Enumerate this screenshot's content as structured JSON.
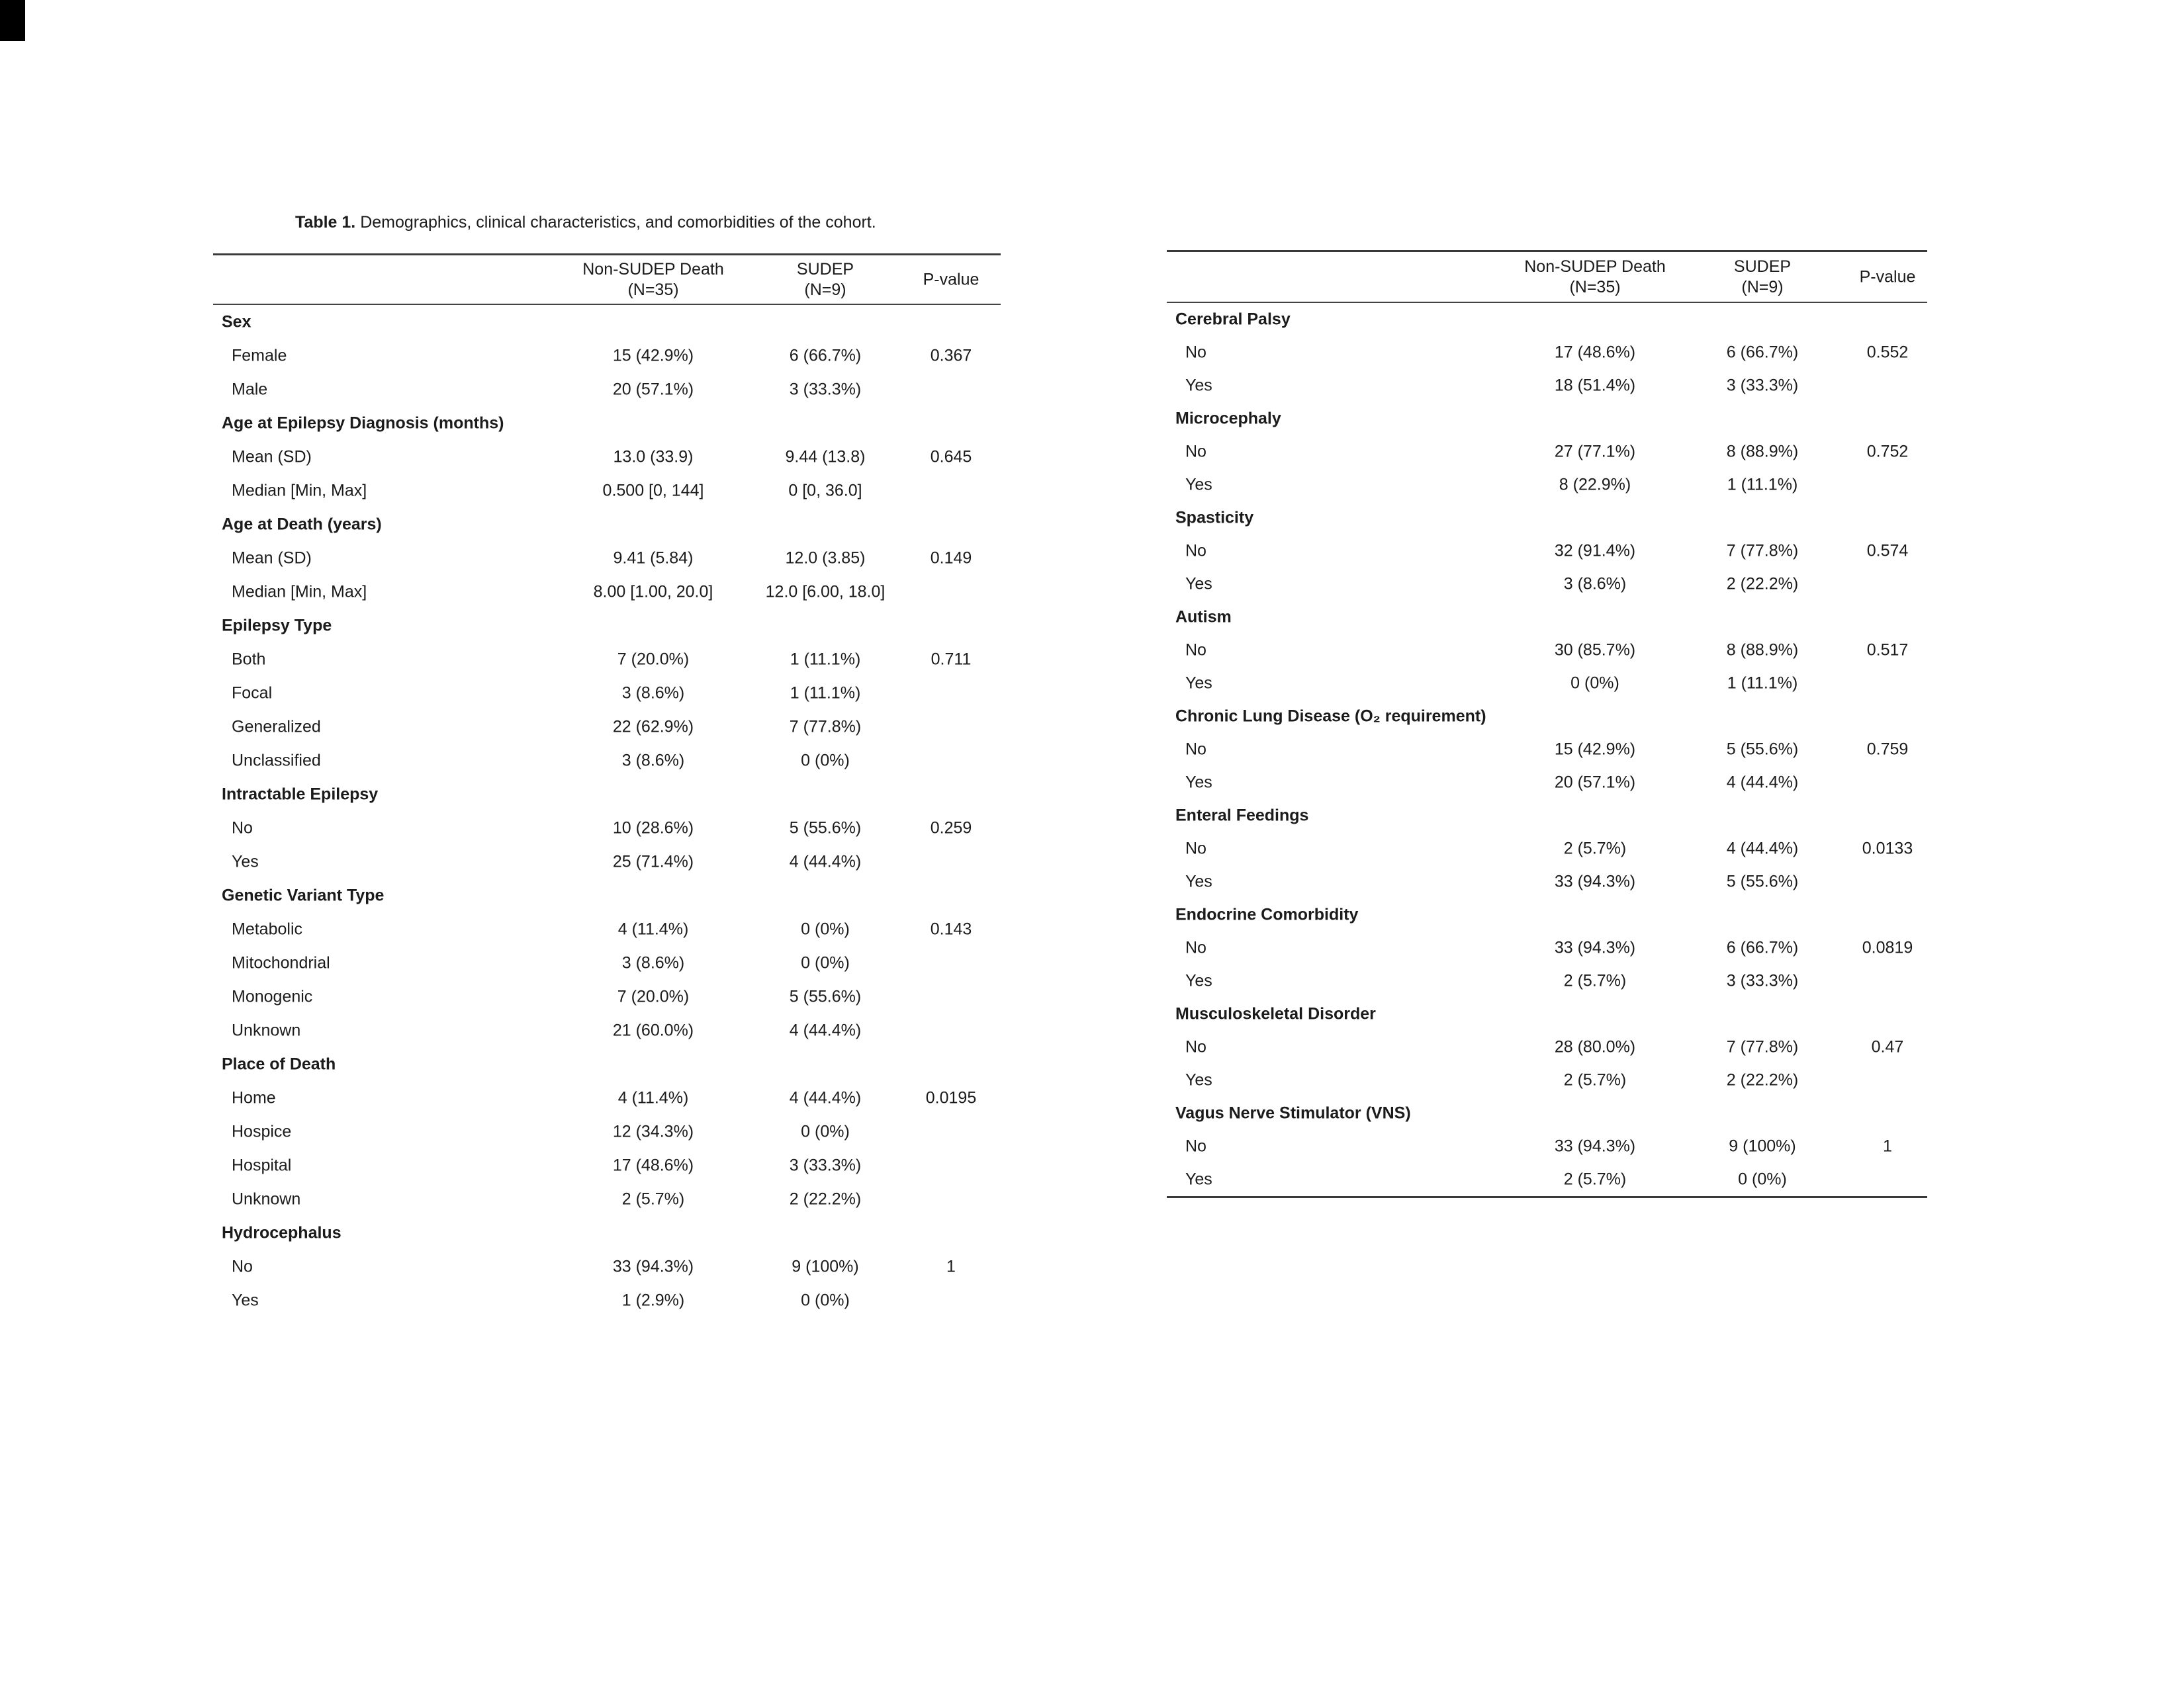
{
  "title": {
    "bold": "Table 1.",
    "rest": " Demographics, clinical characteristics, and comorbidities of the cohort."
  },
  "tables": [
    {
      "name": "demographics-clinical",
      "headers": [
        {
          "line1": "Non-SUDEP Death",
          "line2": "(N=35)"
        },
        {
          "line1": "SUDEP",
          "line2": "(N=9)"
        },
        {
          "line1": "P-value",
          "line2": ""
        }
      ],
      "sections": [
        {
          "label": "Sex",
          "rows": [
            {
              "label": "Female",
              "v1": "15 (42.9%)",
              "v2": "6 (66.7%)",
              "p": "0.367"
            },
            {
              "label": "Male",
              "v1": "20 (57.1%)",
              "v2": "3 (33.3%)",
              "p": ""
            }
          ]
        },
        {
          "label": "Age at Epilepsy Diagnosis (months)",
          "rows": [
            {
              "label": "Mean (SD)",
              "v1": "13.0 (33.9)",
              "v2": "9.44 (13.8)",
              "p": "0.645"
            },
            {
              "label": "Median [Min, Max]",
              "v1": "0.500 [0, 144]",
              "v2": "0 [0, 36.0]",
              "p": ""
            }
          ]
        },
        {
          "label": "Age at Death (years)",
          "rows": [
            {
              "label": "Mean (SD)",
              "v1": "9.41 (5.84)",
              "v2": "12.0 (3.85)",
              "p": "0.149"
            },
            {
              "label": "Median [Min, Max]",
              "v1": "8.00 [1.00, 20.0]",
              "v2": "12.0 [6.00, 18.0]",
              "p": ""
            }
          ]
        },
        {
          "label": "Epilepsy Type",
          "rows": [
            {
              "label": "Both",
              "v1": "7 (20.0%)",
              "v2": "1 (11.1%)",
              "p": "0.711"
            },
            {
              "label": "Focal",
              "v1": "3 (8.6%)",
              "v2": "1 (11.1%)",
              "p": ""
            },
            {
              "label": "Generalized",
              "v1": "22 (62.9%)",
              "v2": "7 (77.8%)",
              "p": ""
            },
            {
              "label": "Unclassified",
              "v1": "3 (8.6%)",
              "v2": "0 (0%)",
              "p": ""
            }
          ]
        },
        {
          "label": "Intractable Epilepsy",
          "rows": [
            {
              "label": "No",
              "v1": "10 (28.6%)",
              "v2": "5 (55.6%)",
              "p": "0.259"
            },
            {
              "label": "Yes",
              "v1": "25 (71.4%)",
              "v2": "4 (44.4%)",
              "p": ""
            }
          ]
        },
        {
          "label": "Genetic Variant Type",
          "rows": [
            {
              "label": "Metabolic",
              "v1": "4 (11.4%)",
              "v2": "0 (0%)",
              "p": "0.143"
            },
            {
              "label": "Mitochondrial",
              "v1": "3 (8.6%)",
              "v2": "0 (0%)",
              "p": ""
            },
            {
              "label": "Monogenic",
              "v1": "7 (20.0%)",
              "v2": "5 (55.6%)",
              "p": ""
            },
            {
              "label": "Unknown",
              "v1": "21 (60.0%)",
              "v2": "4 (44.4%)",
              "p": ""
            }
          ]
        },
        {
          "label": "Place of Death",
          "rows": [
            {
              "label": "Home",
              "v1": "4 (11.4%)",
              "v2": "4 (44.4%)",
              "p": "0.0195"
            },
            {
              "label": "Hospice",
              "v1": "12 (34.3%)",
              "v2": "0 (0%)",
              "p": ""
            },
            {
              "label": "Hospital",
              "v1": "17 (48.6%)",
              "v2": "3 (33.3%)",
              "p": ""
            },
            {
              "label": "Unknown",
              "v1": "2 (5.7%)",
              "v2": "2 (22.2%)",
              "p": ""
            }
          ]
        },
        {
          "label": "Hydrocephalus",
          "rows": [
            {
              "label": "No",
              "v1": "33 (94.3%)",
              "v2": "9 (100%)",
              "p": "1"
            },
            {
              "label": "Yes",
              "v1": "1 (2.9%)",
              "v2": "0 (0%)",
              "p": ""
            }
          ]
        }
      ]
    },
    {
      "name": "comorbidities",
      "headers": [
        {
          "line1": "Non-SUDEP Death",
          "line2": "(N=35)"
        },
        {
          "line1": "SUDEP",
          "line2": "(N=9)"
        },
        {
          "line1": "P-value",
          "line2": ""
        }
      ],
      "sections": [
        {
          "label": "Cerebral Palsy",
          "rows": [
            {
              "label": "No",
              "v1": "17 (48.6%)",
              "v2": "6 (66.7%)",
              "p": "0.552"
            },
            {
              "label": "Yes",
              "v1": "18 (51.4%)",
              "v2": "3 (33.3%)",
              "p": ""
            }
          ]
        },
        {
          "label": "Microcephaly",
          "rows": [
            {
              "label": "No",
              "v1": "27 (77.1%)",
              "v2": "8 (88.9%)",
              "p": "0.752"
            },
            {
              "label": "Yes",
              "v1": "8 (22.9%)",
              "v2": "1 (11.1%)",
              "p": ""
            }
          ]
        },
        {
          "label": "Spasticity",
          "rows": [
            {
              "label": "No",
              "v1": "32 (91.4%)",
              "v2": "7 (77.8%)",
              "p": "0.574"
            },
            {
              "label": "Yes",
              "v1": "3 (8.6%)",
              "v2": "2 (22.2%)",
              "p": ""
            }
          ]
        },
        {
          "label": "Autism",
          "rows": [
            {
              "label": "No",
              "v1": "30 (85.7%)",
              "v2": "8 (88.9%)",
              "p": "0.517"
            },
            {
              "label": "Yes",
              "v1": "0 (0%)",
              "v2": "1 (11.1%)",
              "p": ""
            }
          ]
        },
        {
          "label": "Chronic Lung Disease (O₂ requirement)",
          "rows": [
            {
              "label": "No",
              "v1": "15 (42.9%)",
              "v2": "5 (55.6%)",
              "p": "0.759"
            },
            {
              "label": "Yes",
              "v1": "20 (57.1%)",
              "v2": "4 (44.4%)",
              "p": ""
            }
          ]
        },
        {
          "label": "Enteral Feedings",
          "rows": [
            {
              "label": "No",
              "v1": "2 (5.7%)",
              "v2": "4 (44.4%)",
              "p": "0.0133"
            },
            {
              "label": "Yes",
              "v1": "33 (94.3%)",
              "v2": "5 (55.6%)",
              "p": ""
            }
          ]
        },
        {
          "label": "Endocrine Comorbidity",
          "rows": [
            {
              "label": "No",
              "v1": "33 (94.3%)",
              "v2": "6 (66.7%)",
              "p": "0.0819"
            },
            {
              "label": "Yes",
              "v1": "2 (5.7%)",
              "v2": "3 (33.3%)",
              "p": ""
            }
          ]
        },
        {
          "label": "Musculoskeletal Disorder",
          "rows": [
            {
              "label": "No",
              "v1": "28 (80.0%)",
              "v2": "7 (77.8%)",
              "p": "0.47"
            },
            {
              "label": "Yes",
              "v1": "2 (5.7%)",
              "v2": "2 (22.2%)",
              "p": ""
            }
          ]
        },
        {
          "label": "Vagus Nerve Stimulator (VNS)",
          "rows": [
            {
              "label": "No",
              "v1": "33 (94.3%)",
              "v2": "9 (100%)",
              "p": "1"
            },
            {
              "label": "Yes",
              "v1": "2 (5.7%)",
              "v2": "0 (0%)",
              "p": ""
            }
          ]
        }
      ]
    }
  ]
}
